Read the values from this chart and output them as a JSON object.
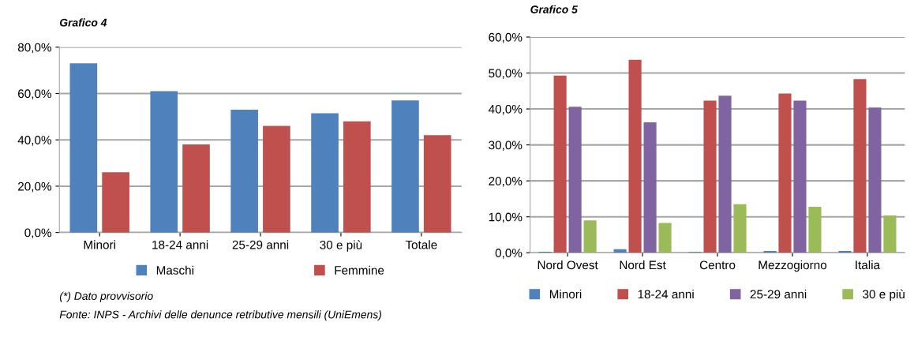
{
  "chart_data": [
    {
      "type": "bar",
      "title": "Grafico 4",
      "categories": [
        "Minori",
        "18-24 anni",
        "25-29 anni",
        "30 e più",
        "Totale"
      ],
      "series": [
        {
          "name": "Maschi",
          "color": "#4f81bd",
          "values": [
            73,
            61,
            53,
            51.5,
            57
          ]
        },
        {
          "name": "Femmine",
          "color": "#c0504d",
          "values": [
            26,
            38,
            46,
            48,
            42
          ]
        }
      ],
      "ylim": [
        0,
        80
      ],
      "yticks": [
        {
          "value": 0,
          "label": "0,0%"
        },
        {
          "value": 20,
          "label": "20,0%"
        },
        {
          "value": 40,
          "label": "40,0%"
        },
        {
          "value": 60,
          "label": "60,0%"
        },
        {
          "value": 80,
          "label": "80,0%"
        }
      ],
      "grid": "y",
      "legend": "bottom",
      "annotations": [
        "(*) Dato provvisorio",
        "Fonte: INPS - Archivi delle denunce retributive mensili (UniEmens)"
      ]
    },
    {
      "type": "bar",
      "title": "Grafico 5",
      "categories": [
        "Nord Ovest",
        "Nord Est",
        "Centro",
        "Mezzogiorno",
        "Italia"
      ],
      "series": [
        {
          "name": "Minori",
          "color": "#4f81bd",
          "values": [
            0.3,
            1.0,
            0.2,
            0.5,
            0.5
          ]
        },
        {
          "name": "18-24 anni",
          "color": "#c0504d",
          "values": [
            49.3,
            53.7,
            42.3,
            44.3,
            48.3
          ]
        },
        {
          "name": "25-29 anni",
          "color": "#8064a2",
          "values": [
            40.6,
            36.3,
            43.7,
            42.3,
            40.4
          ]
        },
        {
          "name": "30 e più",
          "color": "#9bbb59",
          "values": [
            9,
            8.3,
            13.5,
            12.8,
            10.4
          ]
        }
      ],
      "ylim": [
        0,
        60
      ],
      "yticks": [
        {
          "value": 0,
          "label": "0,0%"
        },
        {
          "value": 10,
          "label": "10,0%"
        },
        {
          "value": 20,
          "label": "20,0%"
        },
        {
          "value": 30,
          "label": "30,0%"
        },
        {
          "value": 40,
          "label": "40,0%"
        },
        {
          "value": 50,
          "label": "50,0%"
        },
        {
          "value": 60,
          "label": "60,0%"
        }
      ],
      "grid": "y",
      "legend": "bottom"
    }
  ]
}
